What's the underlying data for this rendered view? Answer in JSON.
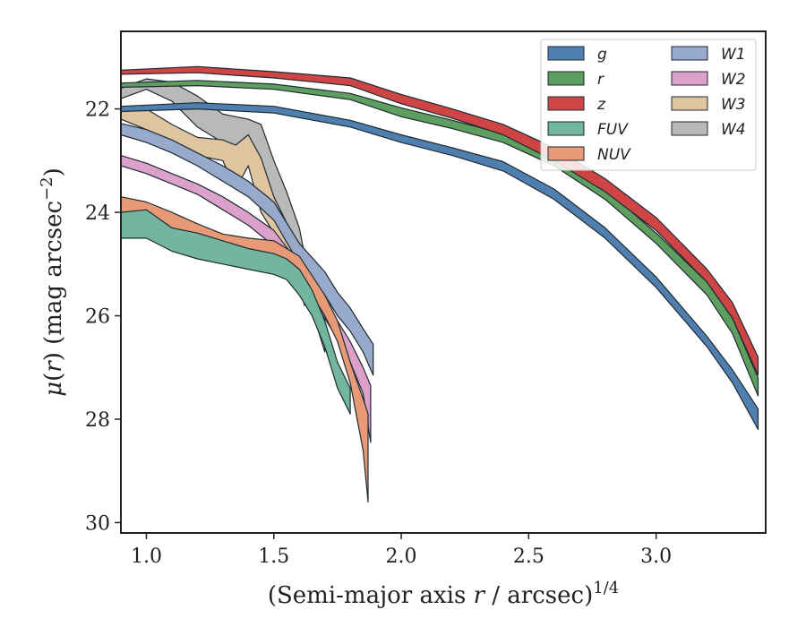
{
  "chart_data": {
    "type": "area",
    "xlabel": "(Semi-major axis r / arcsec)^{1/4}",
    "ylabel": "μ(r) (mag arcsec⁻²)",
    "xlim": [
      0.9,
      3.43
    ],
    "ylim": [
      30.2,
      20.5
    ],
    "y_inverted": true,
    "xticks": [
      1.0,
      1.5,
      2.0,
      2.5,
      3.0
    ],
    "xtick_labels": [
      "1.0",
      "1.5",
      "2.0",
      "2.5",
      "3.0"
    ],
    "yticks": [
      22,
      24,
      26,
      28,
      30
    ],
    "ytick_labels": [
      "22",
      "24",
      "26",
      "28",
      "30"
    ],
    "legend_position": "top-right",
    "legend_columns": 2,
    "series": [
      {
        "name": "g",
        "color": "#4f7faf",
        "x": [
          0.9,
          1.2,
          1.5,
          1.8,
          2.0,
          2.2,
          2.4,
          2.6,
          2.8,
          3.0,
          3.2,
          3.3,
          3.4
        ],
        "y_low": [
          22.05,
          22.0,
          22.08,
          22.35,
          22.65,
          22.9,
          23.2,
          23.75,
          24.5,
          25.45,
          26.6,
          27.3,
          28.2
        ],
        "y_high": [
          21.95,
          21.88,
          21.95,
          22.22,
          22.5,
          22.75,
          23.02,
          23.55,
          24.3,
          25.25,
          26.4,
          27.05,
          27.8
        ]
      },
      {
        "name": "r",
        "color": "#5e9e5e",
        "x": [
          0.9,
          1.2,
          1.5,
          1.8,
          2.0,
          2.2,
          2.4,
          2.6,
          2.8,
          3.0,
          3.2,
          3.3,
          3.4
        ],
        "y_low": [
          21.58,
          21.55,
          21.62,
          21.82,
          22.15,
          22.38,
          22.65,
          23.1,
          23.75,
          24.6,
          25.6,
          26.35,
          27.55
        ],
        "y_high": [
          21.5,
          21.45,
          21.52,
          21.7,
          21.98,
          22.22,
          22.48,
          22.9,
          23.55,
          24.4,
          25.35,
          26.05,
          27.2
        ]
      },
      {
        "name": "z",
        "color": "#cf4545",
        "x": [
          0.9,
          1.2,
          1.5,
          1.8,
          2.0,
          2.2,
          2.4,
          2.6,
          2.8,
          3.0,
          3.2,
          3.3,
          3.4
        ],
        "y_low": [
          21.33,
          21.3,
          21.4,
          21.55,
          21.9,
          22.18,
          22.5,
          23.0,
          23.6,
          24.35,
          25.35,
          26.05,
          27.15
        ],
        "y_high": [
          21.25,
          21.18,
          21.28,
          21.4,
          21.72,
          22.0,
          22.3,
          22.75,
          23.35,
          24.1,
          25.1,
          25.75,
          26.8
        ]
      },
      {
        "name": "FUV",
        "color": "#72b69f",
        "x": [
          0.9,
          1.0,
          1.1,
          1.2,
          1.3,
          1.4,
          1.5,
          1.55,
          1.6,
          1.65,
          1.7,
          1.75,
          1.8
        ],
        "y_low": [
          24.5,
          24.5,
          24.75,
          24.9,
          25.0,
          25.1,
          25.2,
          25.3,
          25.6,
          26.0,
          26.6,
          27.4,
          27.9
        ],
        "y_high": [
          24.0,
          23.95,
          24.3,
          24.4,
          24.55,
          24.7,
          24.8,
          24.9,
          25.1,
          25.5,
          26.1,
          26.9,
          27.4
        ]
      },
      {
        "name": "NUV",
        "color": "#e89a76",
        "x": [
          0.9,
          1.0,
          1.1,
          1.2,
          1.3,
          1.4,
          1.5,
          1.6,
          1.7,
          1.75,
          1.8,
          1.85,
          1.87
        ],
        "y_low": [
          24.0,
          24.1,
          24.3,
          24.55,
          24.72,
          24.8,
          24.9,
          25.2,
          26.0,
          26.5,
          27.3,
          28.6,
          29.6
        ],
        "y_high": [
          23.7,
          23.8,
          24.0,
          24.22,
          24.42,
          24.5,
          24.55,
          24.85,
          25.6,
          26.1,
          26.9,
          27.6,
          27.9
        ]
      },
      {
        "name": "W1",
        "color": "#98aacb",
        "x": [
          0.9,
          1.0,
          1.1,
          1.2,
          1.3,
          1.4,
          1.5,
          1.6,
          1.7,
          1.75,
          1.8,
          1.85,
          1.89
        ],
        "y_low": [
          22.5,
          22.65,
          22.85,
          23.1,
          23.4,
          23.7,
          24.15,
          25.0,
          25.6,
          26.0,
          26.3,
          26.7,
          27.15
        ],
        "y_high": [
          22.28,
          22.4,
          22.6,
          22.85,
          23.1,
          23.4,
          23.8,
          24.6,
          25.15,
          25.55,
          25.85,
          26.25,
          26.55
        ]
      },
      {
        "name": "W2",
        "color": "#dba1cb",
        "x": [
          0.9,
          1.0,
          1.1,
          1.2,
          1.3,
          1.4,
          1.5,
          1.6,
          1.7,
          1.75,
          1.8,
          1.85,
          1.88
        ],
        "y_low": [
          23.1,
          23.25,
          23.45,
          23.65,
          23.95,
          24.25,
          24.65,
          25.3,
          26.05,
          26.45,
          26.9,
          27.5,
          28.45
        ],
        "y_high": [
          22.9,
          23.05,
          23.25,
          23.45,
          23.7,
          24.0,
          24.35,
          25.0,
          25.7,
          26.1,
          26.5,
          27.0,
          27.35
        ]
      },
      {
        "name": "W3",
        "color": "#dec59f",
        "x": [
          0.9,
          1.0,
          1.1,
          1.2,
          1.3,
          1.35,
          1.4,
          1.45,
          1.5,
          1.55,
          1.6,
          1.65,
          1.7
        ],
        "y_low": [
          22.2,
          22.4,
          22.7,
          22.9,
          23.0,
          23.55,
          23.1,
          24.0,
          24.4,
          25.0,
          25.6,
          25.9,
          26.7
        ],
        "y_high": [
          21.95,
          22.0,
          22.3,
          22.55,
          22.6,
          22.7,
          22.5,
          22.95,
          23.7,
          24.2,
          24.9,
          25.4,
          25.8
        ]
      },
      {
        "name": "W4",
        "color": "#b9b9b9",
        "x": [
          0.9,
          1.0,
          1.1,
          1.2,
          1.3,
          1.4,
          1.45,
          1.5,
          1.55,
          1.6,
          1.62,
          1.65
        ],
        "y_low": [
          21.8,
          21.62,
          21.85,
          22.35,
          22.65,
          22.9,
          23.2,
          23.9,
          24.6,
          25.35,
          25.8,
          25.6
        ],
        "y_high": [
          21.6,
          21.42,
          21.48,
          21.75,
          22.1,
          22.2,
          22.3,
          23.0,
          23.6,
          24.3,
          24.8,
          24.9
        ]
      }
    ]
  }
}
